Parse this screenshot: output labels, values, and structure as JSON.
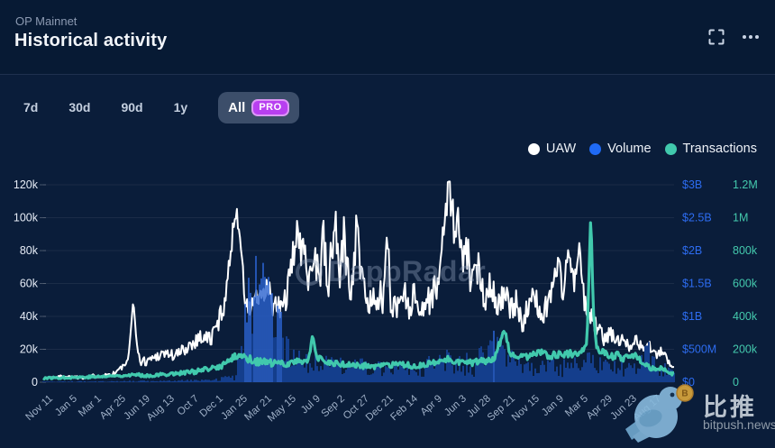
{
  "header": {
    "network": "OP Mainnet",
    "title": "Historical activity"
  },
  "range": {
    "items": [
      {
        "label": "7d"
      },
      {
        "label": "30d"
      },
      {
        "label": "90d"
      },
      {
        "label": "1y"
      }
    ],
    "all": {
      "label": "All",
      "badge": "PRO",
      "selected": true
    }
  },
  "legend": {
    "items": [
      {
        "label": "UAW",
        "color": "#ffffff"
      },
      {
        "label": "Volume",
        "color": "#1f6af5"
      },
      {
        "label": "Transactions",
        "color": "#41c9ad"
      }
    ]
  },
  "watermarks": {
    "dappradar": "DappRadar",
    "bitpush_cn": "比推",
    "bitpush_domain": "bitpush.news"
  },
  "chart_data": {
    "type": "line",
    "title": "Historical activity",
    "network": "OP Mainnet",
    "grid": "horizontal",
    "legend_position": "top-right",
    "x_tick_labels": [
      "Nov 11",
      "Jan 5",
      "Mar 1",
      "Apr 25",
      "Jun 19",
      "Aug 13",
      "Oct 7",
      "Dec 1",
      "Jan 25",
      "Mar 21",
      "May 15",
      "Jul 9",
      "Sep 2",
      "Oct 27",
      "Dec 21",
      "Feb 14",
      "Apr 9",
      "Jun 3",
      "Jul 28",
      "Sep 21",
      "Nov 15",
      "Jan 9",
      "Mar 5",
      "Apr 29",
      "Jun 23",
      "Aug 17"
    ],
    "axes": {
      "uaw": {
        "side": "left",
        "unit": "users (thousands)",
        "max": 120,
        "color": "#e6ecf6",
        "labels": [
          "120k",
          "100k",
          "80k",
          "60k",
          "40k",
          "20k",
          "0"
        ]
      },
      "volume": {
        "side": "right-inner",
        "unit": "USD (millions)",
        "max": 3000,
        "color": "#2d6cf0",
        "labels": [
          "$3B",
          "$2.5B",
          "$2B",
          "$1.5B",
          "$1B",
          "$500M",
          "$0"
        ]
      },
      "transactions": {
        "side": "right-outer",
        "unit": "transactions (thousands)",
        "max": 1200,
        "color": "#44c9ad",
        "labels": [
          "1.2M",
          "1M",
          "800k",
          "600k",
          "400k",
          "200k",
          "0"
        ]
      }
    },
    "series": [
      {
        "name": "UAW",
        "axis": "uaw",
        "style": "line",
        "color": "#ffffff",
        "width": 2,
        "seed": 1337,
        "clamp": [
          0.5,
          122
        ],
        "anchors": [
          [
            0,
            2.5
          ],
          [
            0.03,
            3.5
          ],
          [
            0.06,
            3
          ],
          [
            0.09,
            4
          ],
          [
            0.11,
            5
          ],
          [
            0.125,
            9
          ],
          [
            0.135,
            13
          ],
          [
            0.143,
            52
          ],
          [
            0.148,
            22
          ],
          [
            0.155,
            12
          ],
          [
            0.17,
            14
          ],
          [
            0.19,
            18
          ],
          [
            0.21,
            16
          ],
          [
            0.23,
            22
          ],
          [
            0.25,
            28
          ],
          [
            0.265,
            26
          ],
          [
            0.275,
            34
          ],
          [
            0.285,
            45
          ],
          [
            0.295,
            70
          ],
          [
            0.302,
            98
          ],
          [
            0.307,
            103
          ],
          [
            0.312,
            92
          ],
          [
            0.318,
            55
          ],
          [
            0.325,
            42
          ],
          [
            0.335,
            52
          ],
          [
            0.345,
            48
          ],
          [
            0.355,
            58
          ],
          [
            0.365,
            46
          ],
          [
            0.375,
            44
          ],
          [
            0.385,
            52
          ],
          [
            0.395,
            70
          ],
          [
            0.402,
            100
          ],
          [
            0.408,
            72
          ],
          [
            0.415,
            88
          ],
          [
            0.422,
            64
          ],
          [
            0.43,
            82
          ],
          [
            0.437,
            60
          ],
          [
            0.443,
            92
          ],
          [
            0.45,
            56
          ],
          [
            0.457,
            78
          ],
          [
            0.463,
            96
          ],
          [
            0.47,
            68
          ],
          [
            0.477,
            86
          ],
          [
            0.485,
            60
          ],
          [
            0.493,
            70
          ],
          [
            0.497,
            115
          ],
          [
            0.503,
            62
          ],
          [
            0.51,
            52
          ],
          [
            0.52,
            48
          ],
          [
            0.53,
            55
          ],
          [
            0.54,
            48
          ],
          [
            0.545,
            95
          ],
          [
            0.55,
            52
          ],
          [
            0.56,
            44
          ],
          [
            0.57,
            56
          ],
          [
            0.58,
            48
          ],
          [
            0.59,
            52
          ],
          [
            0.6,
            44
          ],
          [
            0.61,
            50
          ],
          [
            0.62,
            55
          ],
          [
            0.63,
            68
          ],
          [
            0.638,
            110
          ],
          [
            0.643,
            120
          ],
          [
            0.648,
            105
          ],
          [
            0.653,
            88
          ],
          [
            0.658,
            100
          ],
          [
            0.665,
            68
          ],
          [
            0.672,
            80
          ],
          [
            0.68,
            58
          ],
          [
            0.69,
            70
          ],
          [
            0.7,
            52
          ],
          [
            0.71,
            62
          ],
          [
            0.72,
            46
          ],
          [
            0.731,
            55
          ],
          [
            0.74,
            42
          ],
          [
            0.75,
            48
          ],
          [
            0.76,
            38
          ],
          [
            0.77,
            45
          ],
          [
            0.78,
            52
          ],
          [
            0.79,
            40
          ],
          [
            0.8,
            48
          ],
          [
            0.815,
            72
          ],
          [
            0.825,
            55
          ],
          [
            0.832,
            82
          ],
          [
            0.84,
            60
          ],
          [
            0.85,
            78
          ],
          [
            0.858,
            48
          ],
          [
            0.865,
            42
          ],
          [
            0.87,
            38
          ],
          [
            0.88,
            32
          ],
          [
            0.89,
            26
          ],
          [
            0.9,
            30
          ],
          [
            0.91,
            24
          ],
          [
            0.92,
            28
          ],
          [
            0.93,
            22
          ],
          [
            0.94,
            26
          ],
          [
            0.95,
            20
          ],
          [
            0.96,
            23
          ],
          [
            0.97,
            16
          ],
          [
            0.98,
            19
          ],
          [
            0.99,
            13
          ],
          [
            1,
            10
          ]
        ],
        "noise": [
          [
            0,
            0.7
          ],
          [
            0.12,
            1.5
          ],
          [
            0.143,
            2
          ],
          [
            0.16,
            3
          ],
          [
            0.21,
            4
          ],
          [
            0.25,
            5
          ],
          [
            0.285,
            7
          ],
          [
            0.3,
            6
          ],
          [
            0.318,
            8
          ],
          [
            0.33,
            7
          ],
          [
            0.39,
            9
          ],
          [
            0.4,
            15
          ],
          [
            0.45,
            16
          ],
          [
            0.5,
            15
          ],
          [
            0.52,
            10
          ],
          [
            0.62,
            10
          ],
          [
            0.63,
            13
          ],
          [
            0.648,
            12
          ],
          [
            0.67,
            12
          ],
          [
            0.7,
            10
          ],
          [
            0.73,
            9
          ],
          [
            0.78,
            8
          ],
          [
            0.8,
            8
          ],
          [
            0.83,
            10
          ],
          [
            0.86,
            7
          ],
          [
            0.88,
            5
          ],
          [
            0.92,
            4
          ],
          [
            0.96,
            3
          ],
          [
            1,
            2
          ]
        ]
      },
      {
        "name": "Volume",
        "axis": "volume",
        "style": "bars",
        "color": "#143e8c",
        "spike_color": "#2a62cf",
        "spike_threshold": 750,
        "seed": 2024,
        "clamp": [
          2,
          2600
        ],
        "anchors": [
          [
            0,
            8
          ],
          [
            0.05,
            10
          ],
          [
            0.1,
            12
          ],
          [
            0.15,
            15
          ],
          [
            0.2,
            20
          ],
          [
            0.25,
            30
          ],
          [
            0.28,
            45
          ],
          [
            0.3,
            90
          ],
          [
            0.31,
            260
          ],
          [
            0.318,
            700
          ],
          [
            0.325,
            1500
          ],
          [
            0.33,
            900
          ],
          [
            0.338,
            1900
          ],
          [
            0.345,
            1100
          ],
          [
            0.352,
            2300
          ],
          [
            0.36,
            1600
          ],
          [
            0.368,
            900
          ],
          [
            0.375,
            1300
          ],
          [
            0.383,
            600
          ],
          [
            0.39,
            420
          ],
          [
            0.4,
            360
          ],
          [
            0.42,
            300
          ],
          [
            0.44,
            260
          ],
          [
            0.46,
            300
          ],
          [
            0.48,
            220
          ],
          [
            0.5,
            260
          ],
          [
            0.52,
            210
          ],
          [
            0.55,
            190
          ],
          [
            0.58,
            230
          ],
          [
            0.6,
            210
          ],
          [
            0.62,
            290
          ],
          [
            0.64,
            340
          ],
          [
            0.66,
            260
          ],
          [
            0.68,
            220
          ],
          [
            0.7,
            420
          ],
          [
            0.715,
            600
          ],
          [
            0.725,
            520
          ],
          [
            0.74,
            320
          ],
          [
            0.76,
            260
          ],
          [
            0.78,
            210
          ],
          [
            0.8,
            260
          ],
          [
            0.82,
            210
          ],
          [
            0.84,
            260
          ],
          [
            0.86,
            310
          ],
          [
            0.87,
            420
          ],
          [
            0.88,
            260
          ],
          [
            0.9,
            210
          ],
          [
            0.92,
            260
          ],
          [
            0.94,
            310
          ],
          [
            0.955,
            420
          ],
          [
            0.97,
            300
          ],
          [
            0.985,
            220
          ],
          [
            1,
            160
          ]
        ],
        "noise": [
          [
            0,
            6
          ],
          [
            0.27,
            15
          ],
          [
            0.3,
            60
          ],
          [
            0.315,
            350
          ],
          [
            0.33,
            600
          ],
          [
            0.36,
            650
          ],
          [
            0.38,
            400
          ],
          [
            0.4,
            200
          ],
          [
            0.45,
            130
          ],
          [
            0.55,
            110
          ],
          [
            0.62,
            150
          ],
          [
            0.7,
            260
          ],
          [
            0.73,
            220
          ],
          [
            0.78,
            130
          ],
          [
            0.85,
            150
          ],
          [
            0.9,
            130
          ],
          [
            0.955,
            260
          ],
          [
            1,
            90
          ]
        ]
      },
      {
        "name": "Transactions",
        "axis": "transactions",
        "style": "line",
        "color": "#41c9ad",
        "width": 3.2,
        "seed": 77,
        "clamp": [
          4,
          1060
        ],
        "anchors": [
          [
            0,
            25
          ],
          [
            0.05,
            30
          ],
          [
            0.1,
            35
          ],
          [
            0.14,
            45
          ],
          [
            0.17,
            40
          ],
          [
            0.2,
            50
          ],
          [
            0.23,
            60
          ],
          [
            0.26,
            75
          ],
          [
            0.28,
            95
          ],
          [
            0.295,
            130
          ],
          [
            0.31,
            170
          ],
          [
            0.32,
            150
          ],
          [
            0.34,
            125
          ],
          [
            0.36,
            115
          ],
          [
            0.38,
            110
          ],
          [
            0.4,
            125
          ],
          [
            0.42,
            135
          ],
          [
            0.427,
            275
          ],
          [
            0.433,
            150
          ],
          [
            0.45,
            120
          ],
          [
            0.47,
            110
          ],
          [
            0.5,
            100
          ],
          [
            0.53,
            95
          ],
          [
            0.56,
            105
          ],
          [
            0.59,
            100
          ],
          [
            0.62,
            115
          ],
          [
            0.64,
            140
          ],
          [
            0.66,
            125
          ],
          [
            0.68,
            115
          ],
          [
            0.7,
            130
          ],
          [
            0.715,
            150
          ],
          [
            0.731,
            320
          ],
          [
            0.74,
            160
          ],
          [
            0.76,
            150
          ],
          [
            0.775,
            165
          ],
          [
            0.79,
            185
          ],
          [
            0.8,
            160
          ],
          [
            0.82,
            170
          ],
          [
            0.84,
            175
          ],
          [
            0.855,
            195
          ],
          [
            0.862,
            240
          ],
          [
            0.868,
            1040
          ],
          [
            0.872,
            420
          ],
          [
            0.878,
            200
          ],
          [
            0.89,
            170
          ],
          [
            0.9,
            150
          ],
          [
            0.91,
            170
          ],
          [
            0.92,
            140
          ],
          [
            0.93,
            155
          ],
          [
            0.94,
            165
          ],
          [
            0.95,
            120
          ],
          [
            0.96,
            90
          ],
          [
            0.97,
            75
          ],
          [
            0.98,
            85
          ],
          [
            0.99,
            60
          ],
          [
            1,
            50
          ]
        ],
        "noise": [
          [
            0,
            6
          ],
          [
            0.2,
            10
          ],
          [
            0.28,
            20
          ],
          [
            0.32,
            25
          ],
          [
            0.45,
            18
          ],
          [
            0.6,
            18
          ],
          [
            0.7,
            22
          ],
          [
            0.75,
            20
          ],
          [
            0.85,
            22
          ],
          [
            0.868,
            10
          ],
          [
            0.88,
            25
          ],
          [
            0.92,
            20
          ],
          [
            1,
            10
          ]
        ]
      }
    ]
  }
}
